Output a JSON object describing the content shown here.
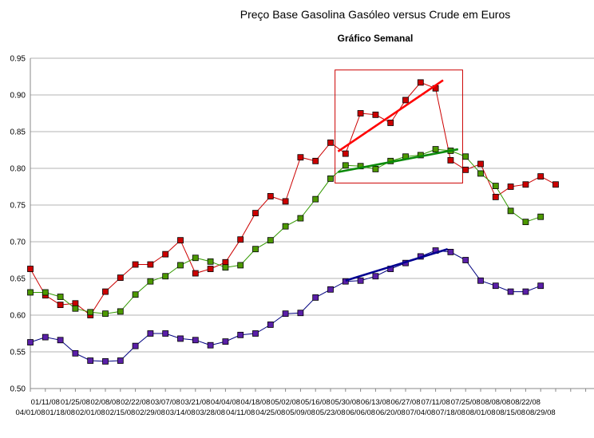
{
  "chart_data": {
    "type": "line",
    "title": "Preço Base Gasolina Gasóleo versus Crude em Euros",
    "subtitle": "Gráfico Semanal",
    "xlabel": "",
    "ylabel": "",
    "ylim": [
      0.5,
      0.95
    ],
    "yticks": [
      "0.50",
      "0.55",
      "0.60",
      "0.65",
      "0.70",
      "0.75",
      "0.80",
      "0.85",
      "0.90",
      "0.95"
    ],
    "grid": true,
    "legend": "none",
    "x_labels_row1": [
      "01/11/08",
      "01/25/08",
      "02/08/08",
      "02/22/08",
      "03/07/08",
      "03/21/08",
      "04/04/08",
      "04/18/08",
      "05/02/08",
      "05/16/08",
      "05/30/08",
      "06/13/08",
      "06/27/08",
      "07/11/08",
      "07/25/08",
      "08/08/08",
      "08/22/08"
    ],
    "x_labels_row2": [
      "04/01/08",
      "01/18/08",
      "02/01/08",
      "02/15/08",
      "02/29/08",
      "03/14/08",
      "03/28/08",
      "04/11/08",
      "04/25/08",
      "05/09/08",
      "05/23/08",
      "06/06/08",
      "06/20/08",
      "07/04/08",
      "07/18/08",
      "08/01/08",
      "08/15/08",
      "08/29/08"
    ],
    "series": [
      {
        "color": "#cc0000",
        "marker": "#cc0000",
        "values": [
          0.663,
          0.627,
          0.614,
          0.616,
          0.6,
          0.632,
          0.651,
          0.669,
          0.669,
          0.683,
          0.702,
          0.657,
          0.663,
          0.672,
          0.703,
          0.739,
          0.762,
          0.755,
          0.815,
          0.81,
          0.835,
          0.82,
          0.875,
          0.873,
          0.862,
          0.893,
          0.917,
          0.909,
          0.811,
          0.798,
          0.806,
          0.761,
          0.775,
          0.778,
          0.789,
          0.778
        ]
      },
      {
        "color": "#339900",
        "marker": "#4d9900",
        "values": [
          0.631,
          0.631,
          0.625,
          0.609,
          0.604,
          0.602,
          0.605,
          0.628,
          0.646,
          0.653,
          0.668,
          0.678,
          0.673,
          0.665,
          0.668,
          0.69,
          0.702,
          0.721,
          0.732,
          0.758,
          0.786,
          0.804,
          0.803,
          0.799,
          0.81,
          0.816,
          0.818,
          0.826,
          0.824,
          0.816,
          0.793,
          0.776,
          0.742,
          0.727,
          0.734
        ]
      },
      {
        "color": "#000080",
        "marker": "#5a1fa8",
        "values": [
          0.563,
          0.57,
          0.566,
          0.548,
          0.538,
          0.537,
          0.538,
          0.558,
          0.575,
          0.575,
          0.568,
          0.566,
          0.559,
          0.564,
          0.573,
          0.575,
          0.587,
          0.602,
          0.603,
          0.624,
          0.635,
          0.646,
          0.647,
          0.653,
          0.663,
          0.671,
          0.68,
          0.688,
          0.686,
          0.675,
          0.647,
          0.64,
          0.632,
          0.632,
          0.64
        ]
      }
    ],
    "trendlines": [
      {
        "color": "#ff0000",
        "from": [
          20.5,
          0.823
        ],
        "to": [
          27.5,
          0.92
        ]
      },
      {
        "color": "#0a8a0a",
        "from": [
          20.5,
          0.795
        ],
        "to": [
          28.5,
          0.826
        ]
      },
      {
        "color": "#000090",
        "from": [
          21.0,
          0.647
        ],
        "to": [
          27.8,
          0.69
        ]
      }
    ],
    "highlight_box": {
      "color": "#cc0000",
      "x_range": [
        20.3,
        28.8
      ],
      "y_range": [
        0.78,
        0.934
      ]
    }
  }
}
